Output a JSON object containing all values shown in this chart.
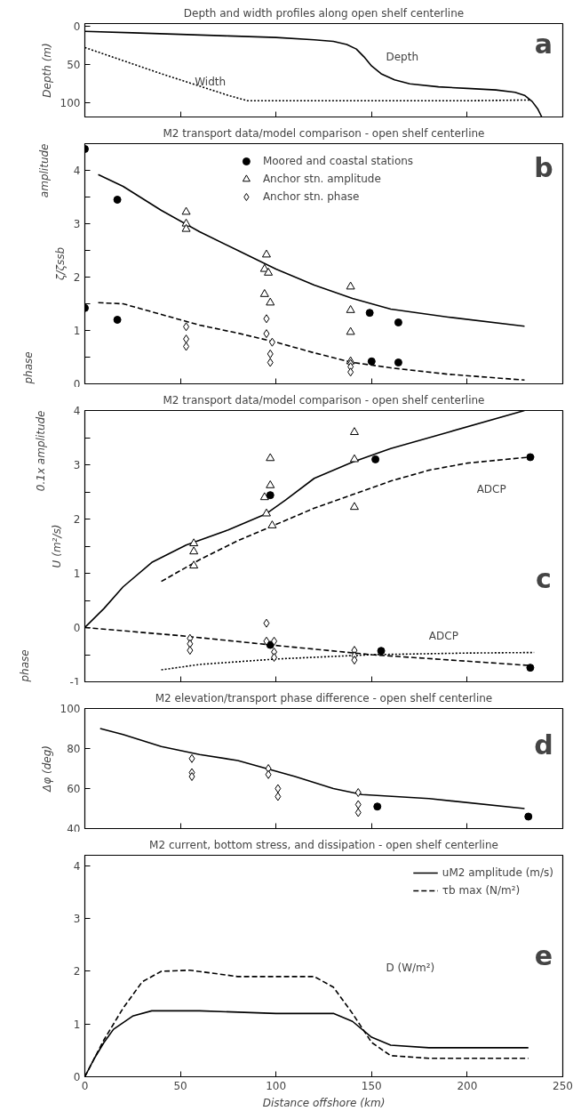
{
  "chart_data": [
    {
      "type": "line",
      "title": "Depth and width profiles along open shelf centerline",
      "ylabel": "Depth (m)",
      "xlim": [
        0,
        250
      ],
      "ylim": [
        118,
        -3
      ],
      "xticks": [
        {
          "value": 50,
          "label": null
        },
        {
          "value": 100,
          "label": null
        },
        {
          "value": 150,
          "label": null
        },
        {
          "value": 200,
          "label": null
        }
      ],
      "yticks": [
        0,
        50,
        100
      ],
      "tick_labels": "y",
      "grid": false,
      "legend": false,
      "series": [
        {
          "type": "line",
          "line_style": "solid",
          "color": "#000000",
          "x": [
            0,
            25,
            50,
            75,
            100,
            120,
            130,
            137,
            142,
            146,
            150,
            155,
            162,
            170,
            185,
            200,
            215,
            225,
            230,
            234,
            237,
            239
          ],
          "values": [
            7,
            9,
            11,
            13,
            15,
            18,
            20,
            24,
            30,
            40,
            52,
            62,
            70,
            75,
            79,
            81,
            83,
            86,
            90,
            98,
            108,
            118
          ]
        },
        {
          "type": "line",
          "line_style": "dotted",
          "color": "#000000",
          "x": [
            0,
            20,
            40,
            60,
            75,
            85,
            100,
            150,
            200,
            233
          ],
          "values": [
            28,
            45,
            62,
            78,
            90,
            97,
            97,
            97,
            97,
            96
          ]
        }
      ],
      "annotations": [
        "a",
        "Depth",
        "Width"
      ]
    },
    {
      "type": "line",
      "title": "M2 transport data/model comparison - open shelf centerline",
      "ylabel": "ζ/ζssb",
      "xlim": [
        0,
        250
      ],
      "ylim": [
        0,
        4.5
      ],
      "xticks": [
        {
          "value": 50,
          "label": null
        },
        {
          "value": 100,
          "label": null
        },
        {
          "value": 150,
          "label": null
        },
        {
          "value": 200,
          "label": null
        }
      ],
      "yticks": [
        0,
        {
          "value": 0.5,
          "label": null
        },
        1,
        {
          "value": 1.5,
          "label": null
        },
        2,
        {
          "value": 2.5,
          "label": null
        },
        3,
        {
          "value": 3.5,
          "label": null
        },
        4
      ],
      "tick_labels": "y",
      "grid": false,
      "legend": "top",
      "series": [
        {
          "type": "line",
          "line_style": "solid",
          "color": "#000000",
          "x": [
            7,
            20,
            40,
            60,
            80,
            100,
            120,
            140,
            160,
            190,
            230
          ],
          "values": [
            3.92,
            3.7,
            3.25,
            2.85,
            2.5,
            2.15,
            1.85,
            1.6,
            1.4,
            1.25,
            1.08
          ]
        },
        {
          "type": "line",
          "line_style": "dashed",
          "color": "#000000",
          "x": [
            7,
            20,
            40,
            60,
            80,
            100,
            120,
            140,
            160,
            190,
            230
          ],
          "values": [
            1.52,
            1.5,
            1.3,
            1.1,
            0.95,
            0.78,
            0.58,
            0.4,
            0.3,
            0.18,
            0.07
          ]
        },
        {
          "type": "scatter",
          "name": "Moored and coastal stations",
          "marker": "circle",
          "color": "#000000",
          "x": [
            0,
            17,
            0,
            17,
            149,
            164,
            150,
            164
          ],
          "values": [
            4.4,
            3.45,
            1.42,
            1.2,
            1.33,
            1.15,
            0.42,
            0.4
          ]
        },
        {
          "type": "scatter",
          "name": "Anchor stn. amplitude",
          "marker": "triangle",
          "color": "#000000",
          "x": [
            53,
            53,
            53,
            95,
            94,
            96,
            94,
            97,
            139,
            139,
            139,
            139
          ],
          "values": [
            3.22,
            3.0,
            2.9,
            2.42,
            2.15,
            2.08,
            1.68,
            1.52,
            1.82,
            1.38,
            0.97,
            0.42
          ]
        },
        {
          "type": "scatter",
          "name": "Anchor stn. phase",
          "marker": "diamond",
          "color": "#000000",
          "x": [
            53,
            53,
            53,
            95,
            95,
            98,
            97,
            97,
            139,
            139,
            139
          ],
          "values": [
            1.07,
            0.84,
            0.7,
            1.22,
            0.94,
            0.78,
            0.56,
            0.4,
            0.38,
            0.32,
            0.22
          ]
        }
      ],
      "annotations": [
        "b",
        "amplitude",
        "phase"
      ]
    },
    {
      "type": "line",
      "title": "M2 transport data/model comparison - open shelf centerline",
      "ylabel": "U (m²/s)",
      "xlim": [
        0,
        250
      ],
      "ylim": [
        -1,
        4
      ],
      "xticks": [
        {
          "value": 50,
          "label": null
        },
        {
          "value": 100,
          "label": null
        },
        {
          "value": 150,
          "label": null
        },
        {
          "value": 200,
          "label": null
        }
      ],
      "yticks": [
        -1,
        {
          "value": -0.5,
          "label": null
        },
        0,
        {
          "value": 0.5,
          "label": null
        },
        1,
        {
          "value": 1.5,
          "label": null
        },
        2,
        {
          "value": 2.5,
          "label": null
        },
        3,
        {
          "value": 3.5,
          "label": null
        },
        4
      ],
      "tick_labels": "y",
      "grid": false,
      "legend": false,
      "series": [
        {
          "type": "line",
          "line_style": "solid",
          "color": "#000000",
          "x": [
            0,
            10,
            20,
            35,
            53,
            75,
            95,
            105,
            120,
            140,
            160,
            190,
            230
          ],
          "values": [
            0,
            0.35,
            0.75,
            1.2,
            1.52,
            1.8,
            2.1,
            2.35,
            2.75,
            3.05,
            3.3,
            3.6,
            4.0
          ]
        },
        {
          "type": "line",
          "line_style": "dashed",
          "color": "#000000",
          "x": [
            40,
            60,
            80,
            100,
            120,
            140,
            160,
            180,
            200,
            235
          ],
          "values": [
            0.85,
            1.25,
            1.6,
            1.9,
            2.2,
            2.45,
            2.7,
            2.9,
            3.03,
            3.15
          ]
        },
        {
          "type": "line",
          "line_style": "dashed",
          "color": "#000000",
          "x": [
            0,
            50,
            100,
            150,
            200,
            233
          ],
          "values": [
            0,
            -0.15,
            -0.33,
            -0.5,
            -0.62,
            -0.7
          ]
        },
        {
          "type": "line",
          "line_style": "dotted",
          "color": "#000000",
          "x": [
            40,
            60,
            100,
            150,
            200,
            235
          ],
          "values": [
            -0.78,
            -0.68,
            -0.58,
            -0.5,
            -0.47,
            -0.46
          ]
        },
        {
          "type": "scatter",
          "marker": "triangle",
          "color": "#000000",
          "x": [
            57,
            57,
            57,
            94,
            95,
            97,
            97,
            98,
            141,
            141,
            141
          ],
          "values": [
            1.55,
            1.4,
            1.14,
            2.4,
            2.1,
            3.12,
            2.62,
            1.88,
            3.6,
            3.1,
            2.22
          ]
        },
        {
          "type": "scatter",
          "marker": "circle",
          "color": "#000000",
          "x": [
            97,
            152,
            233,
            97,
            155,
            233
          ],
          "values": [
            2.44,
            3.1,
            3.14,
            -0.32,
            -0.43,
            -0.74
          ]
        },
        {
          "type": "scatter",
          "marker": "diamond",
          "color": "#000000",
          "x": [
            55,
            55,
            55,
            95,
            95,
            99,
            99,
            99,
            141,
            141,
            141
          ],
          "values": [
            -0.2,
            -0.3,
            -0.42,
            0.08,
            -0.25,
            -0.25,
            -0.45,
            -0.55,
            -0.42,
            -0.52,
            -0.6
          ]
        }
      ],
      "annotations": [
        "c",
        "ADCP",
        "ADCP",
        "0.1x amplitude",
        "phase"
      ]
    },
    {
      "type": "line",
      "title": "M2 elevation/transport phase difference - open shelf centerline",
      "ylabel": "Δφ (deg)",
      "xlim": [
        0,
        250
      ],
      "ylim": [
        40,
        100
      ],
      "xticks": [
        {
          "value": 50,
          "label": null
        },
        {
          "value": 100,
          "label": null
        },
        {
          "value": 150,
          "label": null
        },
        {
          "value": 200,
          "label": null
        }
      ],
      "yticks": [
        40,
        60,
        80,
        100
      ],
      "tick_labels": "y",
      "grid": false,
      "legend": false,
      "series": [
        {
          "type": "line",
          "line_style": "solid",
          "color": "#000000",
          "x": [
            8,
            20,
            40,
            60,
            80,
            95,
            110,
            130,
            145,
            180,
            230
          ],
          "values": [
            90,
            87,
            81,
            77,
            74,
            70,
            66,
            60,
            57,
            55,
            50
          ]
        },
        {
          "type": "scatter",
          "marker": "diamond",
          "color": "#000000",
          "x": [
            56,
            56,
            56,
            96,
            96,
            101,
            101,
            143,
            143,
            143
          ],
          "values": [
            75,
            68,
            66,
            70,
            67,
            60,
            56,
            58,
            52,
            48
          ]
        },
        {
          "type": "scatter",
          "marker": "circle",
          "color": "#000000",
          "x": [
            153,
            232
          ],
          "values": [
            51,
            46
          ]
        }
      ],
      "annotations": [
        "d"
      ]
    },
    {
      "type": "line",
      "title": "M2 current, bottom stress, and dissipation - open shelf centerline",
      "xlabel": "Distance offshore (km)",
      "xlim": [
        0,
        250
      ],
      "ylim": [
        0,
        4.2
      ],
      "xticks": [
        0,
        50,
        100,
        150,
        200,
        250
      ],
      "yticks": [
        0,
        1,
        2,
        3,
        4
      ],
      "grid": false,
      "legend": "top right",
      "series": [
        {
          "type": "line",
          "name": "uM2 amplitude (m/s)",
          "line_style": "solid",
          "color": "#000000",
          "x": [
            0,
            5,
            10,
            15,
            25,
            35,
            60,
            100,
            130,
            140,
            150,
            160,
            180,
            232
          ],
          "values": [
            0,
            0.35,
            0.65,
            0.9,
            1.15,
            1.25,
            1.25,
            1.2,
            1.2,
            1.05,
            0.75,
            0.6,
            0.55,
            0.55
          ]
        },
        {
          "type": "line",
          "name": "τb max (N/m²)",
          "line_style": "dashed",
          "color": "#000000",
          "x": [
            0,
            10,
            20,
            30,
            40,
            55,
            80,
            120,
            130,
            140,
            150,
            160,
            180,
            232
          ],
          "values": [
            0,
            0.7,
            1.3,
            1.8,
            2.0,
            2.02,
            1.9,
            1.9,
            1.7,
            1.2,
            0.65,
            0.4,
            0.35,
            0.35
          ]
        }
      ],
      "annotations": [
        "e",
        "D (W/m²)"
      ]
    }
  ]
}
